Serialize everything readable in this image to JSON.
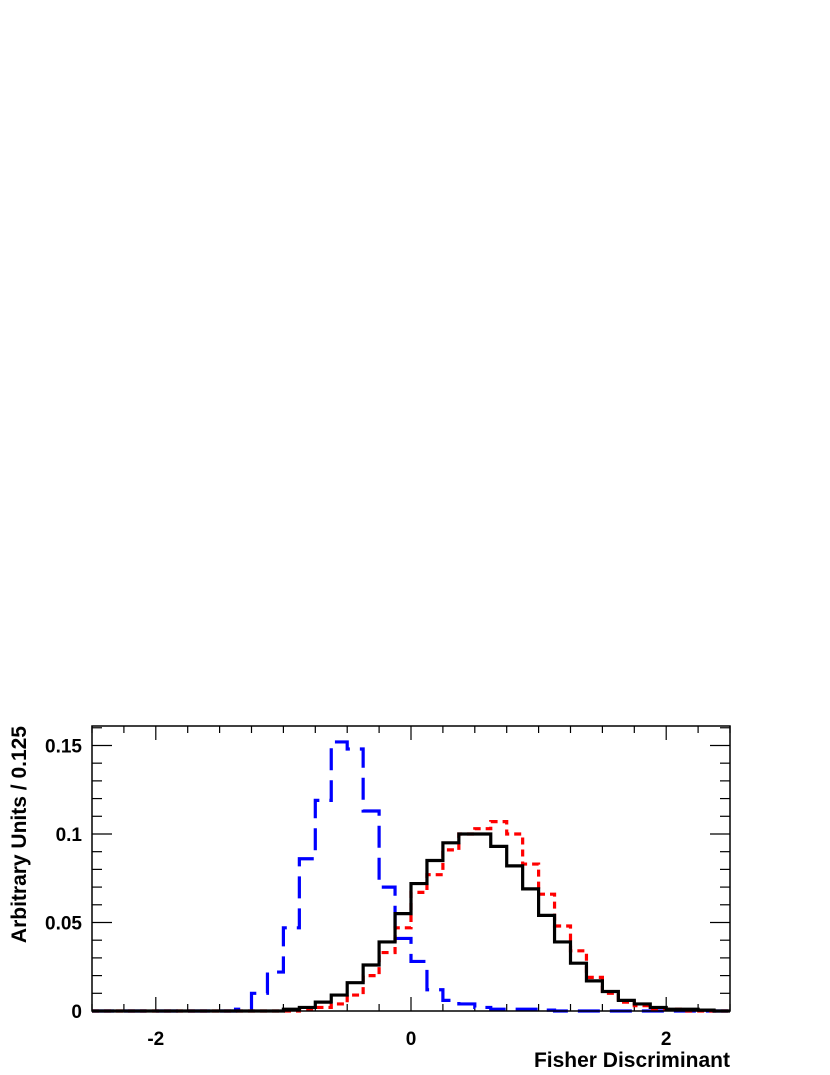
{
  "chart_data": {
    "type": "line",
    "title": "",
    "xlabel": "Fisher Discriminant",
    "ylabel": "Arbitrary Units / 0.125",
    "xlim": [
      -2.5,
      2.5
    ],
    "ylim": [
      0,
      0.161
    ],
    "grid": false,
    "x_ticks": [
      -2,
      0,
      2
    ],
    "y_ticks": [
      0,
      0.05,
      0.1,
      0.15
    ],
    "x_tick_labels": [
      "-2",
      "0",
      "2"
    ],
    "y_tick_labels": [
      "0",
      "0.05",
      "0.1",
      "0.15"
    ],
    "bin_edges": [
      -2.5,
      -2.375,
      -2.25,
      -2.125,
      -2.0,
      -1.875,
      -1.75,
      -1.625,
      -1.5,
      -1.375,
      -1.25,
      -1.125,
      -1.0,
      -0.875,
      -0.75,
      -0.625,
      -0.5,
      -0.375,
      -0.25,
      -0.125,
      0.0,
      0.125,
      0.25,
      0.375,
      0.5,
      0.625,
      0.75,
      0.875,
      1.0,
      1.125,
      1.25,
      1.375,
      1.5,
      1.625,
      1.75,
      1.875,
      2.0,
      2.125,
      2.25,
      2.375,
      2.5
    ],
    "series": [
      {
        "style": "dashed",
        "color": "#0000ff",
        "values": [
          0,
          0,
          0,
          0,
          0,
          0,
          0,
          0,
          0,
          0.001,
          0.01,
          0.022,
          0.047,
          0.086,
          0.119,
          0.152,
          0.148,
          0.113,
          0.07,
          0.041,
          0.028,
          0.012,
          0.006,
          0.004,
          0.002,
          0.001,
          0.001,
          0.001,
          0.0005,
          0,
          0,
          0,
          0,
          0,
          0,
          0,
          0,
          0,
          0,
          0
        ]
      },
      {
        "style": "dotted",
        "color": "#ff0000",
        "values": [
          0,
          0,
          0,
          0,
          0,
          0,
          0,
          0,
          0,
          0,
          0,
          0,
          0,
          0.001,
          0.002,
          0.004,
          0.009,
          0.02,
          0.033,
          0.047,
          0.067,
          0.077,
          0.091,
          0.1,
          0.103,
          0.107,
          0.1,
          0.083,
          0.066,
          0.048,
          0.034,
          0.019,
          0.01,
          0.005,
          0.003,
          0.001,
          0.001,
          0,
          0,
          0
        ]
      },
      {
        "style": "solid",
        "color": "#000000",
        "values": [
          0,
          0,
          0,
          0,
          0,
          0,
          0,
          0,
          0,
          0,
          0,
          0,
          0.001,
          0.002,
          0.005,
          0.009,
          0.016,
          0.026,
          0.039,
          0.055,
          0.072,
          0.085,
          0.095,
          0.1,
          0.1,
          0.093,
          0.082,
          0.069,
          0.054,
          0.039,
          0.027,
          0.017,
          0.011,
          0.006,
          0.004,
          0.002,
          0.001,
          0.001,
          0.0005,
          0
        ]
      }
    ]
  }
}
